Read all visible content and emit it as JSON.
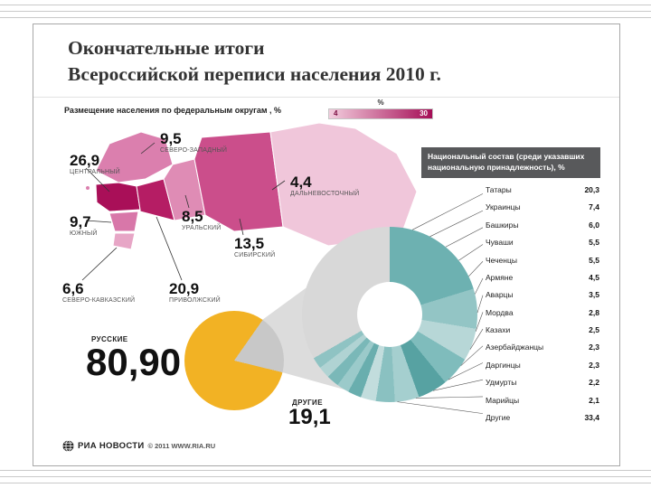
{
  "title": {
    "line1": "Окончательные итоги",
    "line2": "Всероссийской переписи населения 2010 г."
  },
  "map_section": {
    "label": "Размещение населения по федеральным округам , %",
    "legend": {
      "unit": "%",
      "min": "4",
      "max": "30",
      "color_min": "#f3cede",
      "color_max": "#a50d56"
    },
    "districts": [
      {
        "name": "ЦЕНТРАЛЬНЫЙ",
        "value": "26,9"
      },
      {
        "name": "СЕВЕРО-ЗАПАДНЫЙ",
        "value": "9,5"
      },
      {
        "name": "ЮЖНЫЙ",
        "value": "9,7"
      },
      {
        "name": "УРАЛЬСКИЙ",
        "value": "8,5"
      },
      {
        "name": "ДАЛЬНЕВОСТОЧНЫЙ",
        "value": "4,4"
      },
      {
        "name": "СИБИРСКИЙ",
        "value": "13,5"
      },
      {
        "name": "СЕВЕРО-КАВКАЗСКИЙ",
        "value": "6,6"
      },
      {
        "name": "ПРИВОЛЖСКИЙ",
        "value": "20,9"
      }
    ]
  },
  "ethnic_section": {
    "header": "Национальный состав (среди указавших национальную принадлежность), %",
    "items": [
      {
        "name": "Татары",
        "value": "20,3"
      },
      {
        "name": "Украинцы",
        "value": "7,4"
      },
      {
        "name": "Башкиры",
        "value": "6,0"
      },
      {
        "name": "Чуваши",
        "value": "5,5"
      },
      {
        "name": "Чеченцы",
        "value": "5,5"
      },
      {
        "name": "Армяне",
        "value": "4,5"
      },
      {
        "name": "Аварцы",
        "value": "3,5"
      },
      {
        "name": "Мордва",
        "value": "2,8"
      },
      {
        "name": "Казахи",
        "value": "2,5"
      },
      {
        "name": "Азербайджанцы",
        "value": "2,3"
      },
      {
        "name": "Даргинцы",
        "value": "2,3"
      },
      {
        "name": "Удмурты",
        "value": "2,2"
      },
      {
        "name": "Марийцы",
        "value": "2,1"
      },
      {
        "name": "Другие",
        "value": "33,4"
      }
    ]
  },
  "pie": {
    "russians_label": "РУССКИЕ",
    "russians_value": "80,90",
    "others_label": "ДРУГИЕ",
    "others_value": "19,1"
  },
  "footer": {
    "brand": "РИА НОВОСТИ",
    "copyright": "© 2011 WWW.RIA.RU"
  },
  "chart_data": [
    {
      "type": "heatmap",
      "subtype": "choropleth-map",
      "title": "Размещение населения по федеральным округам, %",
      "categories": [
        "Центральный",
        "Северо-Западный",
        "Южный",
        "Уральский",
        "Дальневосточный",
        "Сибирский",
        "Северо-Кавказский",
        "Приволжский"
      ],
      "values": [
        26.9,
        9.5,
        9.7,
        8.5,
        4.4,
        13.5,
        6.6,
        20.9
      ],
      "colors": [
        "#a90f58",
        "#db7fae",
        "#d877a9",
        "#df8cb5",
        "#f0c6da",
        "#cb4e8b",
        "#e7a6c6",
        "#b51d64"
      ],
      "scale": {
        "min": 4,
        "max": 30
      }
    },
    {
      "type": "pie",
      "title": "Русские и другие, %",
      "categories": [
        "Русские",
        "Другие"
      ],
      "values": [
        80.9,
        19.1
      ],
      "colors": [
        "#f2b224",
        "#c8c8c8"
      ]
    },
    {
      "type": "pie",
      "subtype": "donut",
      "title": "Национальный состав (среди указавших национальную принадлежность), %",
      "categories": [
        "Татары",
        "Украинцы",
        "Башкиры",
        "Чуваши",
        "Чеченцы",
        "Армяне",
        "Аварцы",
        "Мордва",
        "Казахи",
        "Азербайджанцы",
        "Даргинцы",
        "Удмурты",
        "Марийцы",
        "Другие"
      ],
      "values": [
        20.3,
        7.4,
        6.0,
        5.5,
        5.5,
        4.5,
        3.5,
        2.8,
        2.5,
        2.3,
        2.3,
        2.2,
        2.1,
        33.4
      ],
      "colors": [
        "#6db1b1",
        "#93c5c5",
        "#b7d7d7",
        "#7fbcbc",
        "#57a2a2",
        "#a5cfcf",
        "#8ac1c1",
        "#c2dddd",
        "#69aeae",
        "#9bcaca",
        "#7ab8b8",
        "#b0d3d3",
        "#8fc3c3",
        "#d8d8d8"
      ]
    }
  ]
}
